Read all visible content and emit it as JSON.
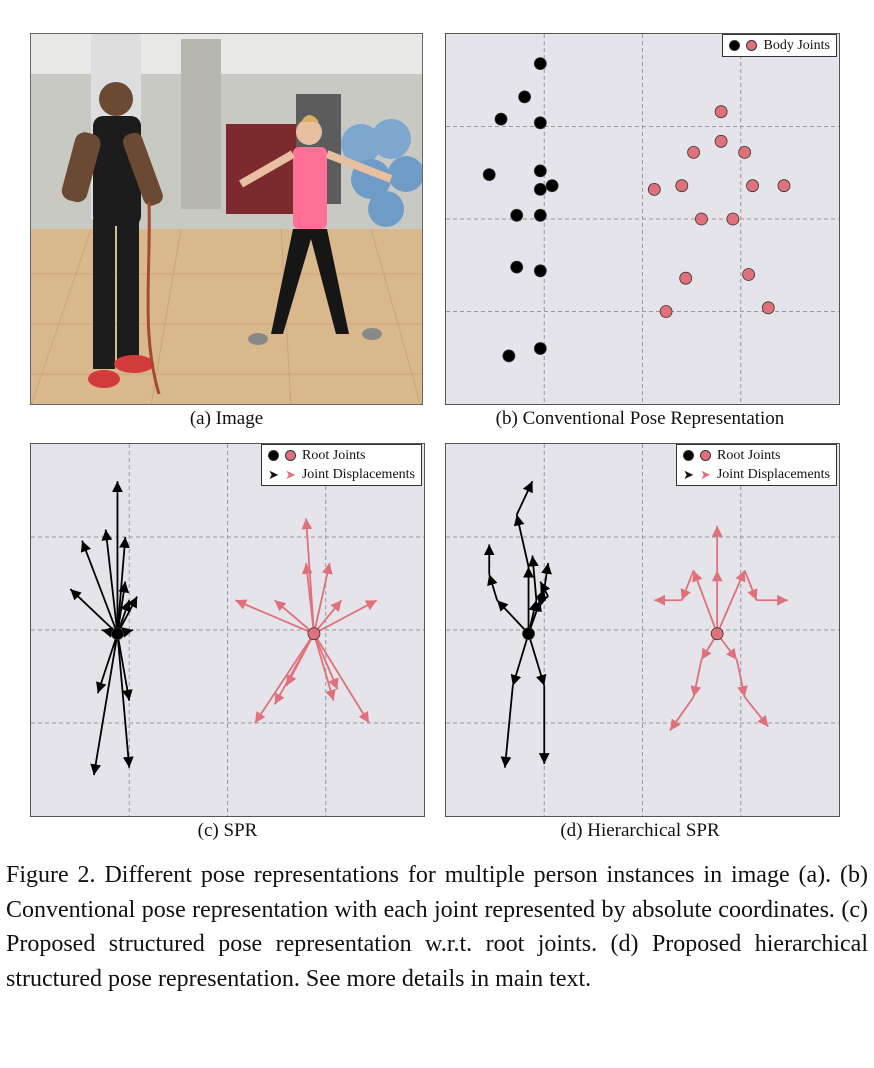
{
  "panels": {
    "a": {
      "caption": "(a) Image"
    },
    "b": {
      "caption": "(b) Conventional Pose Representation",
      "legend": "Body Joints"
    },
    "c": {
      "caption": "(c) SPR",
      "legend_root": "Root Joints",
      "legend_disp": "Joint Displacements"
    },
    "d": {
      "caption": "(d) Hierarchical SPR",
      "legend_root": "Root Joints",
      "legend_disp": "Joint Displacements"
    }
  },
  "colors": {
    "person1": "#000000",
    "person2": "#e0707a",
    "panel_bg": "#e4e4ea",
    "grid": "#999999"
  },
  "figure_caption": "Figure 2. Different pose representations for multiple person instances in image (a). (b) Conventional pose representation with each joint represented by absolute coordinates. (c) Proposed structured pose representation w.r.t. root joints. (d) Proposed hierarchical structured pose representation. See more details in main text.",
  "chart_data": [
    {
      "panel": "b",
      "type": "scatter",
      "series": [
        {
          "color": "#000000",
          "points": [
            [
              0.24,
              0.08
            ],
            [
              0.2,
              0.17
            ],
            [
              0.14,
              0.23
            ],
            [
              0.24,
              0.24
            ],
            [
              0.11,
              0.38
            ],
            [
              0.24,
              0.37
            ],
            [
              0.27,
              0.41
            ],
            [
              0.24,
              0.42
            ],
            [
              0.18,
              0.49
            ],
            [
              0.24,
              0.49
            ],
            [
              0.18,
              0.63
            ],
            [
              0.24,
              0.64
            ],
            [
              0.16,
              0.87
            ],
            [
              0.24,
              0.85
            ]
          ]
        },
        {
          "color": "#e0707a",
          "points": [
            [
              0.7,
              0.21
            ],
            [
              0.63,
              0.32
            ],
            [
              0.7,
              0.29
            ],
            [
              0.76,
              0.32
            ],
            [
              0.53,
              0.42
            ],
            [
              0.6,
              0.41
            ],
            [
              0.78,
              0.41
            ],
            [
              0.86,
              0.41
            ],
            [
              0.65,
              0.5
            ],
            [
              0.73,
              0.5
            ],
            [
              0.61,
              0.66
            ],
            [
              0.77,
              0.65
            ],
            [
              0.56,
              0.75
            ],
            [
              0.82,
              0.74
            ]
          ]
        }
      ]
    },
    {
      "panel": "c",
      "type": "vector-field",
      "series": [
        {
          "color": "#000000",
          "root": [
            0.22,
            0.51
          ],
          "vectors": [
            [
              0.22,
              0.1
            ],
            [
              0.19,
              0.23
            ],
            [
              0.13,
              0.26
            ],
            [
              0.24,
              0.25
            ],
            [
              0.1,
              0.39
            ],
            [
              0.24,
              0.37
            ],
            [
              0.27,
              0.41
            ],
            [
              0.25,
              0.42
            ],
            [
              0.18,
              0.5
            ],
            [
              0.26,
              0.5
            ],
            [
              0.17,
              0.67
            ],
            [
              0.25,
              0.69
            ],
            [
              0.16,
              0.89
            ],
            [
              0.25,
              0.87
            ]
          ]
        },
        {
          "color": "#e0707a",
          "root": [
            0.72,
            0.51
          ],
          "vectors": [
            [
              0.7,
              0.2
            ],
            [
              0.7,
              0.32
            ],
            [
              0.76,
              0.32
            ],
            [
              0.52,
              0.42
            ],
            [
              0.62,
              0.42
            ],
            [
              0.79,
              0.42
            ],
            [
              0.88,
              0.42
            ],
            [
              0.65,
              0.65
            ],
            [
              0.78,
              0.66
            ],
            [
              0.57,
              0.75
            ],
            [
              0.86,
              0.75
            ],
            [
              0.62,
              0.7
            ],
            [
              0.77,
              0.69
            ]
          ]
        }
      ]
    },
    {
      "panel": "d",
      "type": "vector-field",
      "series": [
        {
          "color": "#000000",
          "root": [
            0.21,
            0.51
          ],
          "chains": [
            [
              [
                0.21,
                0.51
              ],
              [
                0.21,
                0.33
              ],
              [
                0.18,
                0.19
              ],
              [
                0.22,
                0.1
              ]
            ],
            [
              [
                0.21,
                0.51
              ],
              [
                0.13,
                0.42
              ],
              [
                0.11,
                0.35
              ],
              [
                0.11,
                0.27
              ]
            ],
            [
              [
                0.21,
                0.51
              ],
              [
                0.23,
                0.42
              ],
              [
                0.22,
                0.3
              ]
            ],
            [
              [
                0.21,
                0.51
              ],
              [
                0.24,
                0.42
              ],
              [
                0.26,
                0.41
              ],
              [
                0.24,
                0.37
              ]
            ],
            [
              [
                0.21,
                0.51
              ],
              [
                0.25,
                0.39
              ],
              [
                0.26,
                0.32
              ]
            ],
            [
              [
                0.21,
                0.51
              ],
              [
                0.17,
                0.65
              ],
              [
                0.15,
                0.87
              ]
            ],
            [
              [
                0.21,
                0.51
              ],
              [
                0.25,
                0.65
              ],
              [
                0.25,
                0.86
              ]
            ]
          ]
        },
        {
          "color": "#e0707a",
          "root": [
            0.69,
            0.51
          ],
          "chains": [
            [
              [
                0.69,
                0.51
              ],
              [
                0.69,
                0.34
              ],
              [
                0.69,
                0.22
              ]
            ],
            [
              [
                0.69,
                0.51
              ],
              [
                0.63,
                0.34
              ],
              [
                0.6,
                0.42
              ],
              [
                0.53,
                0.42
              ]
            ],
            [
              [
                0.69,
                0.51
              ],
              [
                0.76,
                0.34
              ],
              [
                0.79,
                0.42
              ],
              [
                0.87,
                0.42
              ]
            ],
            [
              [
                0.69,
                0.51
              ],
              [
                0.65,
                0.58
              ],
              [
                0.63,
                0.68
              ],
              [
                0.57,
                0.77
              ]
            ],
            [
              [
                0.69,
                0.51
              ],
              [
                0.74,
                0.58
              ],
              [
                0.76,
                0.68
              ],
              [
                0.82,
                0.76
              ]
            ]
          ]
        }
      ]
    }
  ]
}
